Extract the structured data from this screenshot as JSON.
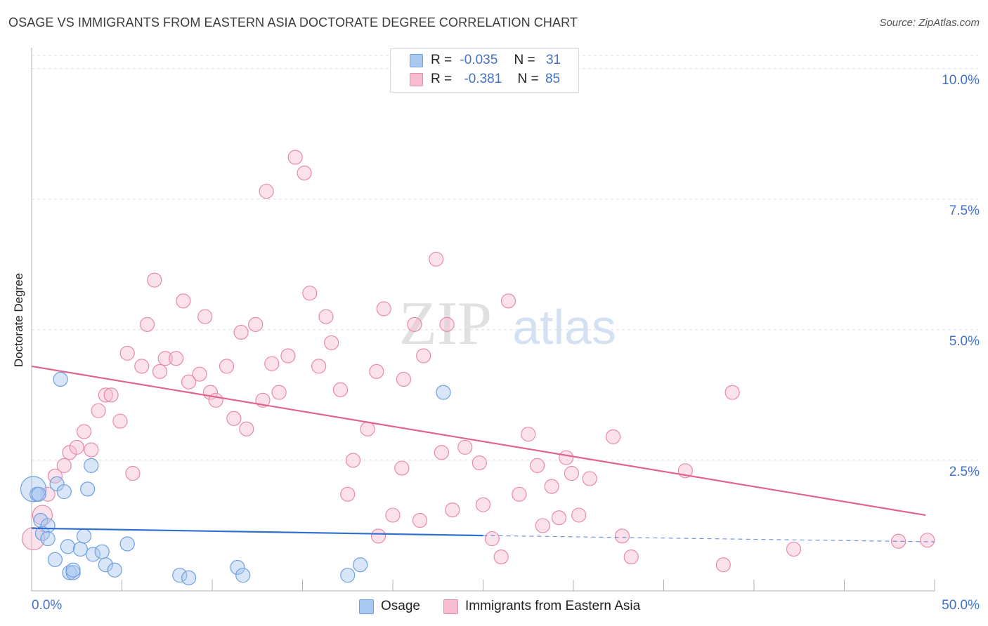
{
  "header": {
    "title": "OSAGE VS IMMIGRANTS FROM EASTERN ASIA DOCTORATE DEGREE CORRELATION CHART",
    "source": "Source: ZipAtlas.com"
  },
  "watermark": {
    "part1": "ZIP",
    "part2": "atlas"
  },
  "stats": {
    "rows": [
      {
        "r_label": "R =",
        "r_value": "-0.035",
        "n_label": "N =",
        "n_value": "31"
      },
      {
        "r_label": "R =",
        "r_value": "-0.381",
        "n_label": "N =",
        "n_value": "85"
      }
    ]
  },
  "legend": {
    "items": [
      "Osage",
      "Immigrants from Eastern Asia"
    ]
  },
  "colors": {
    "osage_fill": "#a9c8f0",
    "osage_stroke": "#6f9fe0",
    "osage_line": "#2f6fd0",
    "imm_fill": "#f7bcd0",
    "imm_stroke": "#e98aaa",
    "imm_line": "#e0648c",
    "axis_label": "#4472c4",
    "grid": "#dcdcdc"
  },
  "chart_data": {
    "type": "scatter",
    "title": "OSAGE VS IMMIGRANTS FROM EASTERN ASIA DOCTORATE DEGREE CORRELATION CHART",
    "xlabel": "",
    "ylabel": "Doctorate Degree",
    "xlim": [
      0,
      50
    ],
    "ylim": [
      0,
      10.25
    ],
    "x_tick_labels": [
      "0.0%",
      "50.0%"
    ],
    "y_ticks": [
      2.5,
      5.0,
      7.5,
      10.0
    ],
    "y_tick_labels": [
      "2.5%",
      "5.0%",
      "7.5%",
      "10.0%"
    ],
    "grid": "horizontal dashed",
    "legend_position": "bottom-center",
    "series": [
      {
        "name": "Osage",
        "r": -0.035,
        "n": 31,
        "trend": {
          "x": [
            0,
            25
          ],
          "y": [
            1.2,
            1.06
          ],
          "dashed_extension_to": [
            50,
            0.94
          ]
        },
        "points": [
          [
            0.1,
            1.95,
            18
          ],
          [
            0.3,
            1.85,
            10
          ],
          [
            0.5,
            1.35,
            10
          ],
          [
            0.6,
            1.1,
            10
          ],
          [
            0.9,
            1.25,
            10
          ],
          [
            0.9,
            1.0,
            10
          ],
          [
            1.3,
            0.6,
            10
          ],
          [
            1.4,
            2.05,
            10
          ],
          [
            1.6,
            4.05,
            10
          ],
          [
            1.8,
            1.9,
            10
          ],
          [
            2.0,
            0.85,
            10
          ],
          [
            2.1,
            0.35,
            10
          ],
          [
            2.3,
            0.35,
            10
          ],
          [
            2.3,
            0.4,
            10
          ],
          [
            2.7,
            0.8,
            10
          ],
          [
            2.9,
            1.05,
            10
          ],
          [
            3.1,
            1.95,
            10
          ],
          [
            3.3,
            2.4,
            10
          ],
          [
            3.4,
            0.7,
            10
          ],
          [
            3.9,
            0.75,
            10
          ],
          [
            4.1,
            0.5,
            10
          ],
          [
            4.6,
            0.4,
            10
          ],
          [
            5.3,
            0.9,
            10
          ],
          [
            8.2,
            0.3,
            10
          ],
          [
            8.7,
            0.25,
            10
          ],
          [
            11.4,
            0.45,
            10
          ],
          [
            11.7,
            0.3,
            10
          ],
          [
            17.5,
            0.3,
            10
          ],
          [
            18.2,
            0.5,
            10
          ],
          [
            22.8,
            3.8,
            10
          ],
          [
            0.4,
            1.85,
            10
          ]
        ]
      },
      {
        "name": "Immigrants from Eastern Asia",
        "r": -0.381,
        "n": 85,
        "trend": {
          "x": [
            0,
            49.5
          ],
          "y": [
            4.3,
            1.45
          ]
        },
        "points": [
          [
            0.1,
            1.0,
            16
          ],
          [
            0.6,
            1.45,
            14
          ],
          [
            0.9,
            1.85,
            10
          ],
          [
            1.3,
            2.2,
            10
          ],
          [
            1.8,
            2.4,
            10
          ],
          [
            2.1,
            2.65,
            10
          ],
          [
            2.5,
            2.75,
            10
          ],
          [
            2.9,
            3.05,
            10
          ],
          [
            3.3,
            2.7,
            10
          ],
          [
            3.7,
            3.45,
            10
          ],
          [
            4.1,
            3.75,
            10
          ],
          [
            4.4,
            3.75,
            10
          ],
          [
            4.9,
            3.25,
            10
          ],
          [
            5.3,
            4.55,
            10
          ],
          [
            5.6,
            2.25,
            10
          ],
          [
            6.1,
            4.3,
            10
          ],
          [
            6.4,
            5.1,
            10
          ],
          [
            6.8,
            5.95,
            10
          ],
          [
            7.1,
            4.2,
            10
          ],
          [
            7.4,
            4.45,
            10
          ],
          [
            8.0,
            4.45,
            10
          ],
          [
            8.4,
            5.55,
            10
          ],
          [
            8.7,
            4.0,
            10
          ],
          [
            9.3,
            4.15,
            10
          ],
          [
            9.6,
            5.25,
            10
          ],
          [
            9.9,
            3.8,
            10
          ],
          [
            10.2,
            3.65,
            10
          ],
          [
            10.8,
            4.3,
            10
          ],
          [
            11.2,
            3.3,
            10
          ],
          [
            11.6,
            4.95,
            10
          ],
          [
            11.9,
            3.1,
            10
          ],
          [
            12.4,
            5.1,
            10
          ],
          [
            12.8,
            3.65,
            10
          ],
          [
            13.0,
            7.65,
            10
          ],
          [
            13.3,
            4.35,
            10
          ],
          [
            13.7,
            3.8,
            10
          ],
          [
            14.2,
            4.5,
            10
          ],
          [
            14.6,
            8.3,
            10
          ],
          [
            15.1,
            8.0,
            10
          ],
          [
            15.4,
            5.7,
            10
          ],
          [
            15.9,
            4.3,
            10
          ],
          [
            16.3,
            5.25,
            10
          ],
          [
            16.6,
            4.75,
            10
          ],
          [
            17.1,
            3.85,
            10
          ],
          [
            17.5,
            1.85,
            10
          ],
          [
            17.8,
            2.5,
            10
          ],
          [
            18.6,
            3.1,
            10
          ],
          [
            19.1,
            4.2,
            10
          ],
          [
            19.2,
            1.05,
            10
          ],
          [
            19.5,
            5.4,
            10
          ],
          [
            20.0,
            1.45,
            10
          ],
          [
            20.5,
            2.35,
            10
          ],
          [
            20.6,
            4.05,
            10
          ],
          [
            21.2,
            5.1,
            10
          ],
          [
            21.5,
            1.35,
            10
          ],
          [
            21.7,
            4.5,
            10
          ],
          [
            22.4,
            6.35,
            10
          ],
          [
            22.7,
            2.65,
            10
          ],
          [
            23.0,
            5.1,
            10
          ],
          [
            23.3,
            1.55,
            10
          ],
          [
            24.0,
            2.75,
            10
          ],
          [
            24.8,
            2.45,
            10
          ],
          [
            25.0,
            1.65,
            10
          ],
          [
            25.5,
            1.0,
            10
          ],
          [
            26.0,
            0.65,
            10
          ],
          [
            26.4,
            5.55,
            10
          ],
          [
            27.0,
            1.85,
            10
          ],
          [
            27.5,
            3.0,
            10
          ],
          [
            28.0,
            2.4,
            10
          ],
          [
            28.3,
            1.25,
            10
          ],
          [
            28.8,
            2.0,
            10
          ],
          [
            29.2,
            1.4,
            10
          ],
          [
            29.6,
            2.55,
            10
          ],
          [
            29.9,
            2.25,
            10
          ],
          [
            30.3,
            1.45,
            10
          ],
          [
            30.9,
            2.15,
            10
          ],
          [
            32.2,
            2.95,
            10
          ],
          [
            32.7,
            1.05,
            10
          ],
          [
            33.2,
            0.65,
            10
          ],
          [
            36.2,
            2.3,
            10
          ],
          [
            38.3,
            0.5,
            10
          ],
          [
            38.8,
            3.8,
            10
          ],
          [
            42.2,
            0.8,
            10
          ],
          [
            48.0,
            0.95,
            10
          ],
          [
            49.6,
            0.97,
            10
          ]
        ]
      }
    ]
  }
}
